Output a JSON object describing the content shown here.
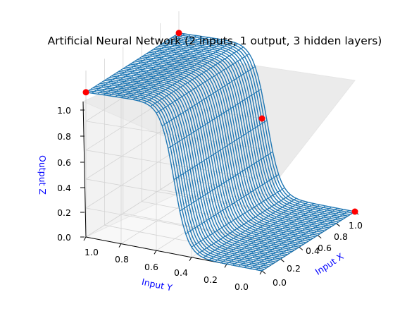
{
  "chart_data": {
    "type": "surface3d",
    "title": "Artificial Neural Network (2 inputs, 1 output, 3 hidden layers)",
    "xlabel": "Input X",
    "ylabel": "Input Y",
    "zlabel": "Output Z",
    "xlim": [
      0,
      1
    ],
    "ylim": [
      0,
      1
    ],
    "zlim": [
      0,
      1
    ],
    "x_ticks": [
      "0.0",
      "0.2",
      "0.4",
      "0.6",
      "0.8",
      "1.0"
    ],
    "y_ticks": [
      "0.0",
      "0.2",
      "0.4",
      "0.6",
      "0.8",
      "1.0"
    ],
    "z_ticks": [
      "0.0",
      "0.2",
      "0.4",
      "0.6",
      "0.8",
      "1.0"
    ],
    "surface": {
      "description_of_shape": "sigmoid step along Y",
      "z_low": 0.0,
      "z_high": 1.0,
      "step_center_y": 0.5,
      "color": "#1f77b4"
    },
    "points": [
      {
        "x": 0.0,
        "y": 1.0,
        "z": 1.0
      },
      {
        "x": 1.0,
        "y": 0.0,
        "z": 0.0
      },
      {
        "x": 0.0,
        "y": 0.0,
        "z": 1.0
      },
      {
        "x": 1.0,
        "y": 1.0,
        "z": 1.0
      }
    ],
    "point_color": "#ff0000",
    "label_color": "#0000ff",
    "grid": true
  }
}
